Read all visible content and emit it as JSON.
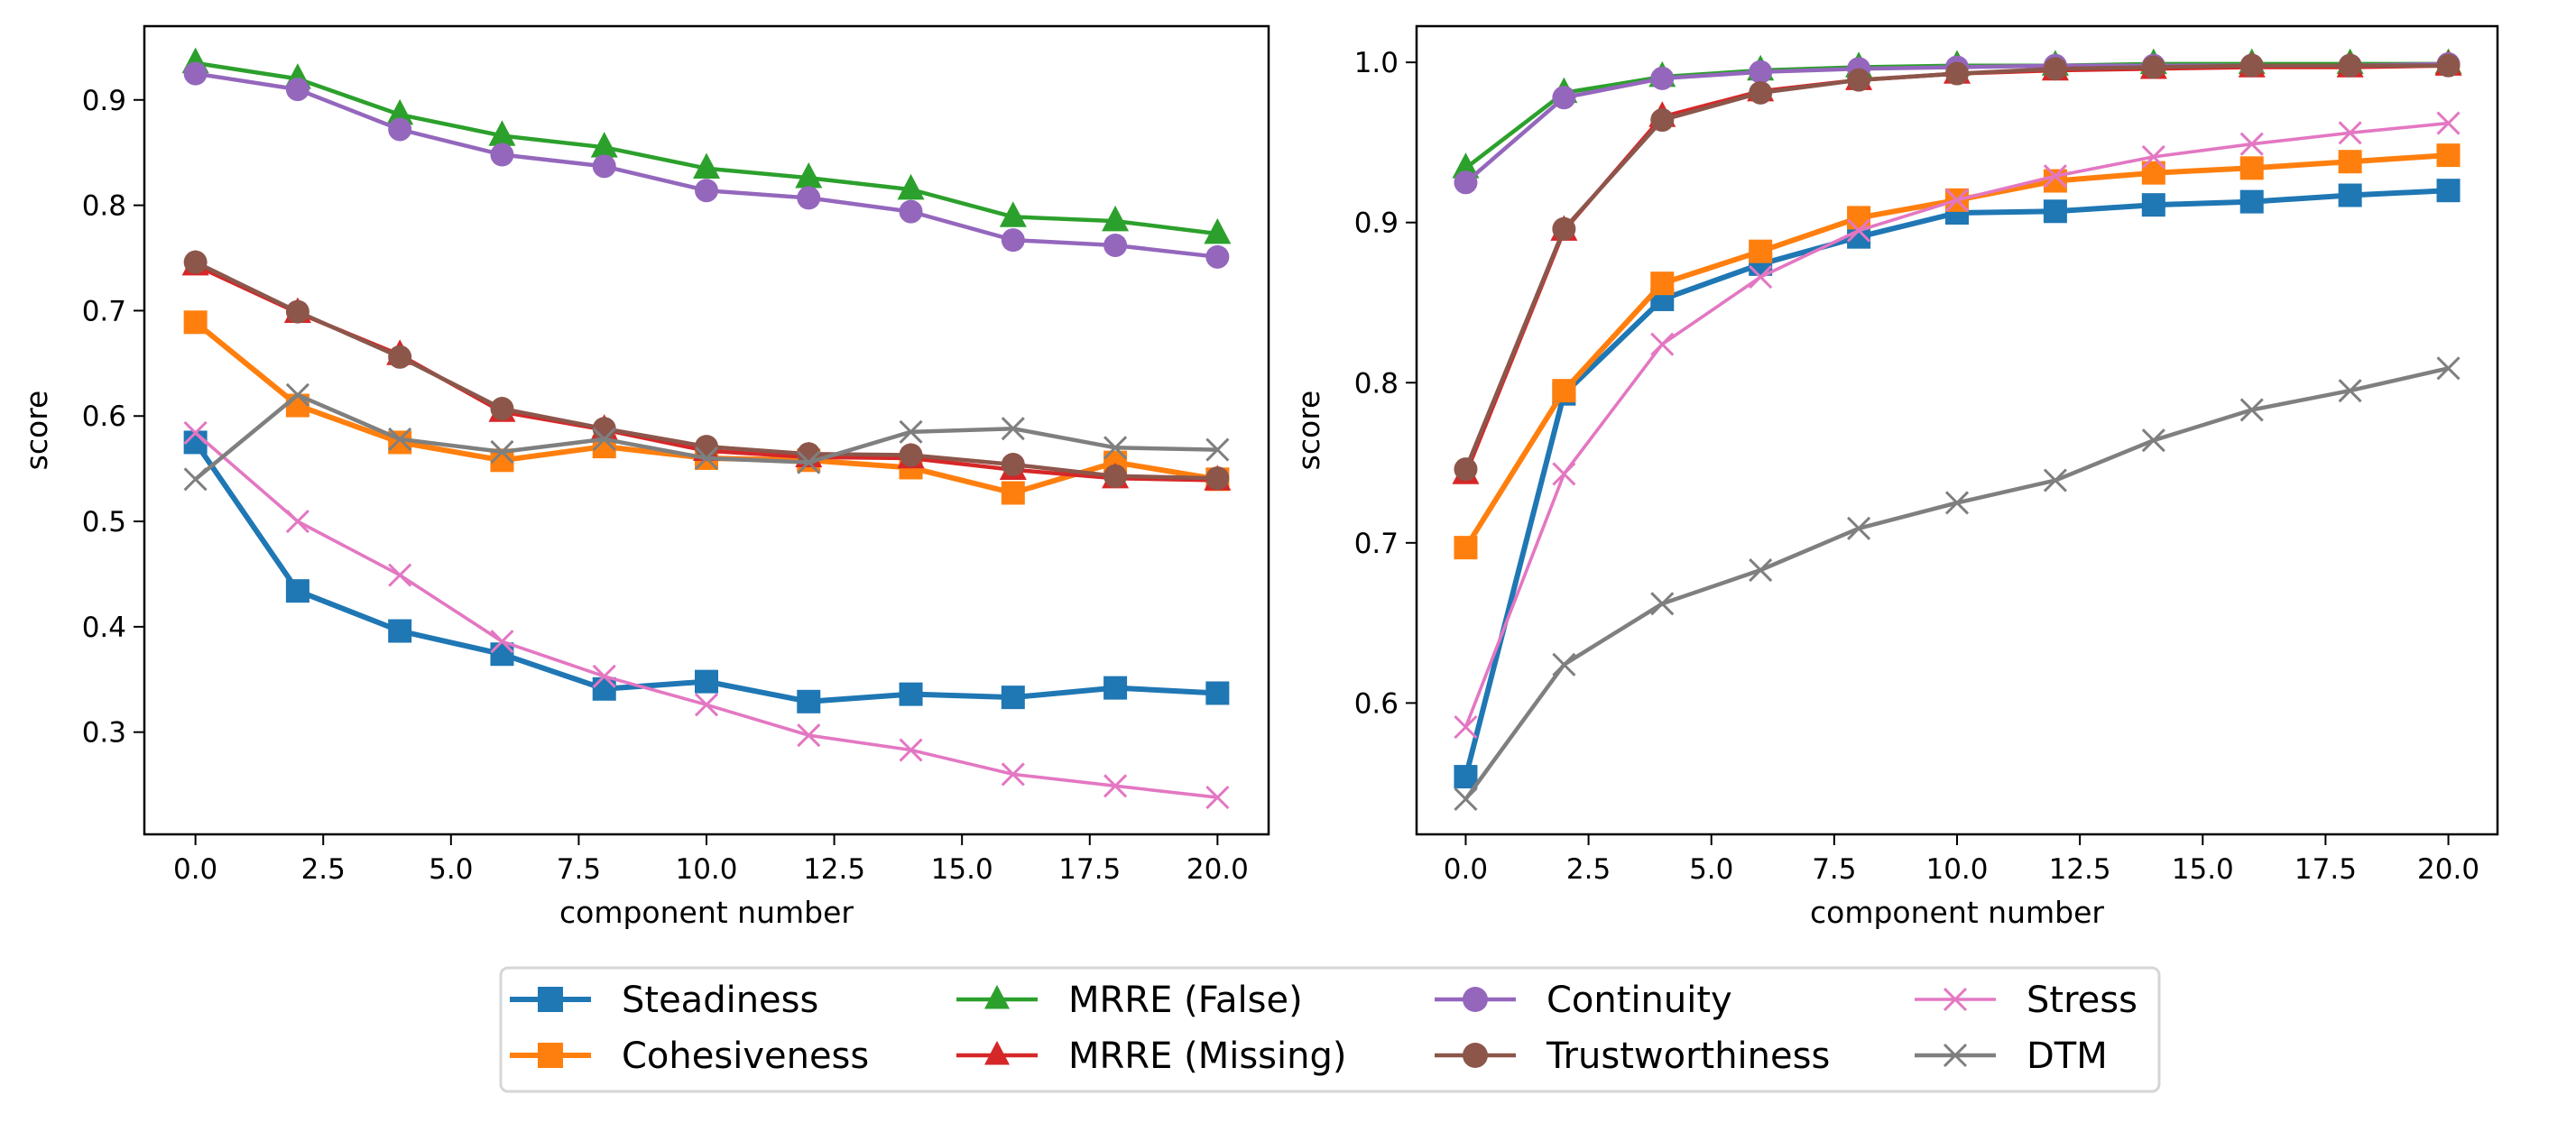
{
  "figure": {
    "legend": {
      "placement": "bottom-center",
      "columns": 4,
      "entries": [
        {
          "name": "Steadiness",
          "color": "#1f77b4",
          "marker": "square"
        },
        {
          "name": "Cohesiveness",
          "color": "#ff7f0e",
          "marker": "square"
        },
        {
          "name": "MRRE (False)",
          "color": "#2ca02c",
          "marker": "triangle"
        },
        {
          "name": "MRRE (Missing)",
          "color": "#d62728",
          "marker": "triangle"
        },
        {
          "name": "Continuity",
          "color": "#9467bd",
          "marker": "circle"
        },
        {
          "name": "Trustworthiness",
          "color": "#8c564b",
          "marker": "circle"
        },
        {
          "name": "Stress",
          "color": "#e377c2",
          "marker": "x"
        },
        {
          "name": "DTM",
          "color": "#7f7f7f",
          "marker": "x"
        }
      ]
    }
  },
  "chart_data": [
    {
      "type": "line",
      "title": "",
      "xlabel": "component number",
      "ylabel": "score",
      "xlim": [
        -1,
        21
      ],
      "ylim": [
        0.203,
        0.97
      ],
      "xticks": [
        0,
        2.5,
        5,
        7.5,
        10,
        12.5,
        15,
        17.5,
        20
      ],
      "xtick_labels": [
        "0.0",
        "2.5",
        "5.0",
        "7.5",
        "10.0",
        "12.5",
        "15.0",
        "17.5",
        "20.0"
      ],
      "yticks": [
        0.3,
        0.4,
        0.5,
        0.6,
        0.7,
        0.8,
        0.9
      ],
      "ytick_labels": [
        "0.3",
        "0.4",
        "0.5",
        "0.6",
        "0.7",
        "0.8",
        "0.9"
      ],
      "grid": false,
      "x": [
        0,
        2,
        4,
        6,
        8,
        10,
        12,
        14,
        16,
        18,
        20
      ],
      "series": [
        {
          "name": "Steadiness",
          "values": [
            0.575,
            0.434,
            0.396,
            0.374,
            0.341,
            0.348,
            0.329,
            0.336,
            0.333,
            0.342,
            0.337
          ]
        },
        {
          "name": "Cohesiveness",
          "values": [
            0.689,
            0.61,
            0.575,
            0.558,
            0.571,
            0.56,
            0.558,
            0.551,
            0.527,
            0.556,
            0.54
          ]
        },
        {
          "name": "MRRE (False)",
          "values": [
            0.935,
            0.92,
            0.886,
            0.866,
            0.855,
            0.835,
            0.826,
            0.815,
            0.789,
            0.785,
            0.773
          ]
        },
        {
          "name": "MRRE (Missing)",
          "values": [
            0.743,
            0.698,
            0.658,
            0.604,
            0.587,
            0.567,
            0.561,
            0.56,
            0.549,
            0.541,
            0.539
          ]
        },
        {
          "name": "Continuity",
          "values": [
            0.925,
            0.91,
            0.872,
            0.848,
            0.837,
            0.814,
            0.807,
            0.794,
            0.767,
            0.762,
            0.751
          ]
        },
        {
          "name": "Trustworthiness",
          "values": [
            0.746,
            0.699,
            0.656,
            0.607,
            0.588,
            0.571,
            0.564,
            0.563,
            0.554,
            0.543,
            0.541
          ]
        },
        {
          "name": "Stress",
          "values": [
            0.584,
            0.5,
            0.449,
            0.386,
            0.353,
            0.326,
            0.297,
            0.283,
            0.26,
            0.249,
            0.238
          ]
        },
        {
          "name": "DTM",
          "values": [
            0.54,
            0.62,
            0.578,
            0.566,
            0.578,
            0.56,
            0.556,
            0.585,
            0.588,
            0.57,
            0.568
          ]
        }
      ]
    },
    {
      "type": "line",
      "title": "",
      "xlabel": "component number",
      "ylabel": "score",
      "xlim": [
        -1,
        21
      ],
      "ylim": [
        0.518,
        1.0226
      ],
      "xticks": [
        0,
        2.5,
        5,
        7.5,
        10,
        12.5,
        15,
        17.5,
        20
      ],
      "xtick_labels": [
        "0.0",
        "2.5",
        "5.0",
        "7.5",
        "10.0",
        "12.5",
        "15.0",
        "17.5",
        "20.0"
      ],
      "yticks": [
        0.6,
        0.7,
        0.8,
        0.9,
        1.0
      ],
      "ytick_labels": [
        "0.6",
        "0.7",
        "0.8",
        "0.9",
        "1.0"
      ],
      "grid": false,
      "x": [
        0,
        2,
        4,
        6,
        8,
        10,
        12,
        14,
        16,
        18,
        20
      ],
      "series": [
        {
          "name": "Steadiness",
          "values": [
            0.554,
            0.793,
            0.852,
            0.874,
            0.891,
            0.906,
            0.907,
            0.911,
            0.913,
            0.917,
            0.92
          ]
        },
        {
          "name": "Cohesiveness",
          "values": [
            0.697,
            0.795,
            0.862,
            0.882,
            0.903,
            0.914,
            0.926,
            0.931,
            0.934,
            0.938,
            0.942
          ]
        },
        {
          "name": "MRRE (False)",
          "values": [
            0.934,
            0.981,
            0.991,
            0.995,
            0.997,
            0.998,
            0.998,
            0.999,
            0.999,
            0.999,
            0.999
          ]
        },
        {
          "name": "MRRE (Missing)",
          "values": [
            0.743,
            0.895,
            0.966,
            0.982,
            0.989,
            0.993,
            0.995,
            0.996,
            0.997,
            0.997,
            0.998
          ]
        },
        {
          "name": "Continuity",
          "values": [
            0.925,
            0.978,
            0.99,
            0.994,
            0.996,
            0.997,
            0.998,
            0.998,
            0.998,
            0.998,
            0.999
          ]
        },
        {
          "name": "Trustworthiness",
          "values": [
            0.746,
            0.896,
            0.964,
            0.981,
            0.989,
            0.993,
            0.996,
            0.997,
            0.998,
            0.998,
            0.998
          ]
        },
        {
          "name": "Stress",
          "values": [
            0.585,
            0.743,
            0.824,
            0.866,
            0.895,
            0.914,
            0.929,
            0.941,
            0.949,
            0.956,
            0.962
          ]
        },
        {
          "name": "DTM",
          "values": [
            0.54,
            0.624,
            0.662,
            0.683,
            0.709,
            0.725,
            0.739,
            0.764,
            0.783,
            0.795,
            0.809
          ]
        }
      ]
    }
  ]
}
